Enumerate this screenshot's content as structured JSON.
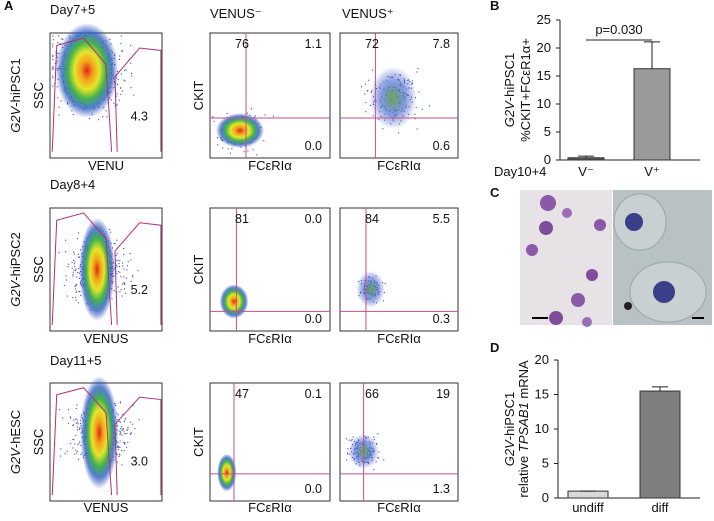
{
  "panel_labels": [
    "A",
    "B",
    "C",
    "D"
  ],
  "panel_a": {
    "columns": {
      "venus_neg": "VENUS⁻",
      "venus_pos": "VENUS⁺"
    },
    "rows": [
      {
        "day": "Day7+5",
        "line": [
          {
            "text": "G2V",
            "italic": true
          },
          {
            "text": "-hiPSC1"
          }
        ],
        "gate_plot": {
          "y_label": "SSC",
          "x_label": "VENU",
          "gate": "4.3"
        },
        "venus_neg": {
          "y_label": "CKIT",
          "x_label": "FCεRIα",
          "upper_left": "76",
          "upper_right": "1.1",
          "lower_right": "0.0"
        },
        "venus_pos": {
          "x_label": "FCεRIα",
          "upper_left": "72",
          "upper_right": "7.8",
          "lower_right": "0.6"
        }
      },
      {
        "day": "Day8+4",
        "line": [
          {
            "text": "G2V",
            "italic": true
          },
          {
            "text": "-hiPSC2"
          }
        ],
        "gate_plot": {
          "y_label": "SSC",
          "x_label": "VENUS",
          "gate": "5.2"
        },
        "venus_neg": {
          "y_label": "CKIT",
          "x_label": "FCεRIα",
          "upper_left": "81",
          "upper_right": "0.0",
          "lower_right": "0.0"
        },
        "venus_pos": {
          "x_label": "FCεRIα",
          "upper_left": "84",
          "upper_right": "5.5",
          "lower_right": "0.3"
        }
      },
      {
        "day": "Day11+5",
        "line": [
          {
            "text": "G2V",
            "italic": true
          },
          {
            "text": "-hESC"
          }
        ],
        "gate_plot": {
          "y_label": "SSC",
          "x_label": "VENUS",
          "gate": "3.0"
        },
        "venus_neg": {
          "y_label": "CKIT",
          "x_label": "FCεRIα",
          "upper_left": "47",
          "upper_right": "0.1",
          "lower_right": "0.0"
        },
        "venus_pos": {
          "x_label": "FCεRIα",
          "upper_left": "66",
          "upper_right": "19",
          "lower_right": "1.3"
        }
      }
    ]
  },
  "chart_data": [
    {
      "type": "bar",
      "y_label_lines": [
        [
          {
            "text": "G2V",
            "italic": true
          },
          {
            "text": "-hiPSC1"
          }
        ],
        [
          {
            "text": "%CKIT+FCεR1α+"
          }
        ]
      ],
      "x_row_label": "Day10+4",
      "categories": [
        "V⁻",
        "V⁺"
      ],
      "values": [
        0.4,
        16.3
      ],
      "errors": [
        0.3,
        4.8
      ],
      "colors": [
        "#5a5a5a",
        "#9a9a9a"
      ],
      "ylim": [
        0,
        25
      ],
      "yticks": [
        0,
        5,
        10,
        15,
        20,
        25
      ],
      "annotation": "p=0.030"
    },
    {
      "type": "bar",
      "y_label_lines": [
        [
          {
            "text": "G2V",
            "italic": true
          },
          {
            "text": "-hiPSC1"
          }
        ],
        [
          {
            "text": "relative "
          },
          {
            "text": "TPSAB1",
            "italic": true
          },
          {
            "text": " mRNA"
          }
        ]
      ],
      "categories": [
        "undiff",
        "diff"
      ],
      "values": [
        1,
        15.5
      ],
      "errors": [
        0,
        0.6
      ],
      "colors": [
        "#d9d9d9",
        "#7f7f7f"
      ],
      "ylim": [
        0,
        20
      ],
      "yticks": [
        0,
        5,
        10,
        15,
        20
      ]
    }
  ]
}
